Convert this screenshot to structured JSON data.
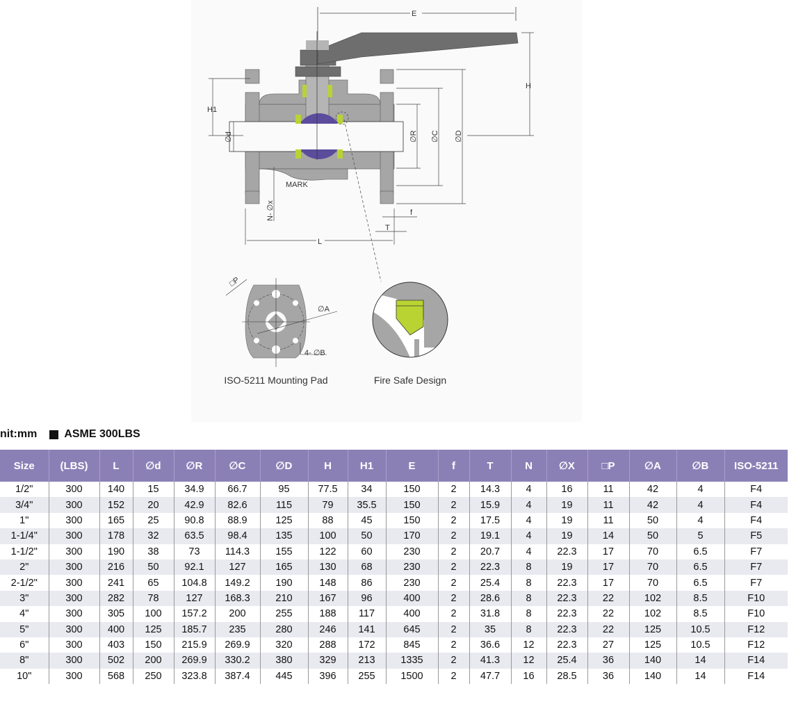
{
  "diagram": {
    "labels": {
      "E": "E",
      "H": "H",
      "H1": "H1",
      "d": "∅d",
      "R": "∅R",
      "C": "∅C",
      "D": "∅D",
      "mark": "MARK",
      "nx": "N- ∅x",
      "f": "f",
      "T": "T",
      "L": "L",
      "P": "□P",
      "A": "∅A",
      "B": "4- ∅B"
    },
    "captions": {
      "mounting_pad": "ISO-5211 Mounting Pad",
      "fire_safe": "Fire Safe Design"
    },
    "colors": {
      "body": "#a6a6a6",
      "dark": "#6e6e6e",
      "ball": "#5b4c9c",
      "seat": "#b9d432"
    }
  },
  "unit_label": "nit:mm",
  "standard_label": "ASME 300LBS",
  "table": {
    "header_color": "#8b80b6",
    "columns": [
      "Size",
      "(LBS)",
      "L",
      "∅d",
      "∅R",
      "∅C",
      "∅D",
      "H",
      "H1",
      "E",
      "f",
      "T",
      "N",
      "∅X",
      "□P",
      "∅A",
      "∅B",
      "ISO-5211"
    ],
    "rows": [
      [
        "1/2\"",
        "300",
        "140",
        "15",
        "34.9",
        "66.7",
        "95",
        "77.5",
        "34",
        "150",
        "2",
        "14.3",
        "4",
        "16",
        "11",
        "42",
        "4",
        "F4"
      ],
      [
        "3/4\"",
        "300",
        "152",
        "20",
        "42.9",
        "82.6",
        "115",
        "79",
        "35.5",
        "150",
        "2",
        "15.9",
        "4",
        "19",
        "11",
        "42",
        "4",
        "F4"
      ],
      [
        "1\"",
        "300",
        "165",
        "25",
        "90.8",
        "88.9",
        "125",
        "88",
        "45",
        "150",
        "2",
        "17.5",
        "4",
        "19",
        "11",
        "50",
        "4",
        "F4"
      ],
      [
        "1-1/4\"",
        "300",
        "178",
        "32",
        "63.5",
        "98.4",
        "135",
        "100",
        "50",
        "170",
        "2",
        "19.1",
        "4",
        "19",
        "14",
        "50",
        "5",
        "F5"
      ],
      [
        "1-1/2\"",
        "300",
        "190",
        "38",
        "73",
        "114.3",
        "155",
        "122",
        "60",
        "230",
        "2",
        "20.7",
        "4",
        "22.3",
        "17",
        "70",
        "6.5",
        "F7"
      ],
      [
        "2\"",
        "300",
        "216",
        "50",
        "92.1",
        "127",
        "165",
        "130",
        "68",
        "230",
        "2",
        "22.3",
        "8",
        "19",
        "17",
        "70",
        "6.5",
        "F7"
      ],
      [
        "2-1/2\"",
        "300",
        "241",
        "65",
        "104.8",
        "149.2",
        "190",
        "148",
        "86",
        "230",
        "2",
        "25.4",
        "8",
        "22.3",
        "17",
        "70",
        "6.5",
        "F7"
      ],
      [
        "3\"",
        "300",
        "282",
        "78",
        "127",
        "168.3",
        "210",
        "167",
        "96",
        "400",
        "2",
        "28.6",
        "8",
        "22.3",
        "22",
        "102",
        "8.5",
        "F10"
      ],
      [
        "4\"",
        "300",
        "305",
        "100",
        "157.2",
        "200",
        "255",
        "188",
        "117",
        "400",
        "2",
        "31.8",
        "8",
        "22.3",
        "22",
        "102",
        "8.5",
        "F10"
      ],
      [
        "5\"",
        "300",
        "400",
        "125",
        "185.7",
        "235",
        "280",
        "246",
        "141",
        "645",
        "2",
        "35",
        "8",
        "22.3",
        "22",
        "125",
        "10.5",
        "F12"
      ],
      [
        "6\"",
        "300",
        "403",
        "150",
        "215.9",
        "269.9",
        "320",
        "288",
        "172",
        "845",
        "2",
        "36.6",
        "12",
        "22.3",
        "27",
        "125",
        "10.5",
        "F12"
      ],
      [
        "8\"",
        "300",
        "502",
        "200",
        "269.9",
        "330.2",
        "380",
        "329",
        "213",
        "1335",
        "2",
        "41.3",
        "12",
        "25.4",
        "36",
        "140",
        "14",
        "F14"
      ],
      [
        "10\"",
        "300",
        "568",
        "250",
        "323.8",
        "387.4",
        "445",
        "396",
        "255",
        "1500",
        "2",
        "47.7",
        "16",
        "28.5",
        "36",
        "140",
        "14",
        "F14"
      ]
    ]
  }
}
